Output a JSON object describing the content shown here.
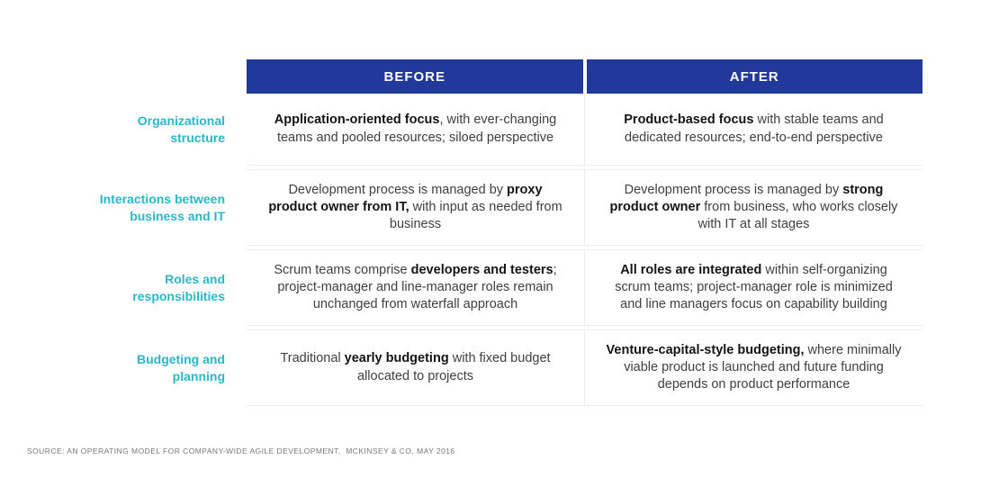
{
  "table": {
    "headers": {
      "before": "BEFORE",
      "after": "AFTER"
    },
    "rows": [
      {
        "label": [
          "Organizational",
          "structure"
        ],
        "before": [
          {
            "text": "Application-oriented focus",
            "bold": true
          },
          {
            "text": ", with ever-changing teams and pooled resources; siloed perspective",
            "bold": false
          }
        ],
        "after": [
          {
            "text": "Product-based focus",
            "bold": true
          },
          {
            "text": " with stable teams and dedicated resources; end-to-end perspective",
            "bold": false
          }
        ]
      },
      {
        "label": [
          "Interactions between",
          "business and IT"
        ],
        "before": [
          {
            "text": "Development process is managed by ",
            "bold": false
          },
          {
            "text": "proxy product owner from IT,",
            "bold": true
          },
          {
            "text": " with input as needed from business",
            "bold": false
          }
        ],
        "after": [
          {
            "text": "Development process is managed by ",
            "bold": false
          },
          {
            "text": "strong product owner",
            "bold": true
          },
          {
            "text": " from business, who works closely with IT at all stages",
            "bold": false
          }
        ]
      },
      {
        "label": [
          "Roles and",
          "responsibilities"
        ],
        "before": [
          {
            "text": "Scrum teams comprise ",
            "bold": false
          },
          {
            "text": "developers and testers",
            "bold": true
          },
          {
            "text": "; project-manager and line-manager roles remain unchanged from waterfall approach",
            "bold": false
          }
        ],
        "after": [
          {
            "text": "All roles are integrated",
            "bold": true
          },
          {
            "text": " within self-organizing scrum teams; project-manager role is minimized and line managers focus on capability building",
            "bold": false
          }
        ]
      },
      {
        "label": [
          "Budgeting and",
          "planning"
        ],
        "before": [
          {
            "text": "Traditional ",
            "bold": false
          },
          {
            "text": "yearly budgeting",
            "bold": true
          },
          {
            "text": " with fixed budget allocated to projects",
            "bold": false
          }
        ],
        "after": [
          {
            "text": "Venture-capital-style budgeting,",
            "bold": true
          },
          {
            "text": " where minimally viable product is launched and future funding depends on product performance",
            "bold": false
          }
        ]
      }
    ]
  },
  "footer": {
    "source": "SOURCE: AN OPERATING MODEL FOR COMPANY-WIDE AGILE DEVELOPMENT,  MCKINSEY & CO, MAY 2016"
  },
  "colors": {
    "header_bg": "#20399B",
    "label_teal": "#2AB7C8",
    "body_text": "#3F3F3F",
    "bold_text": "#141414",
    "border": "#ECECEC",
    "source_text": "#75787B"
  }
}
